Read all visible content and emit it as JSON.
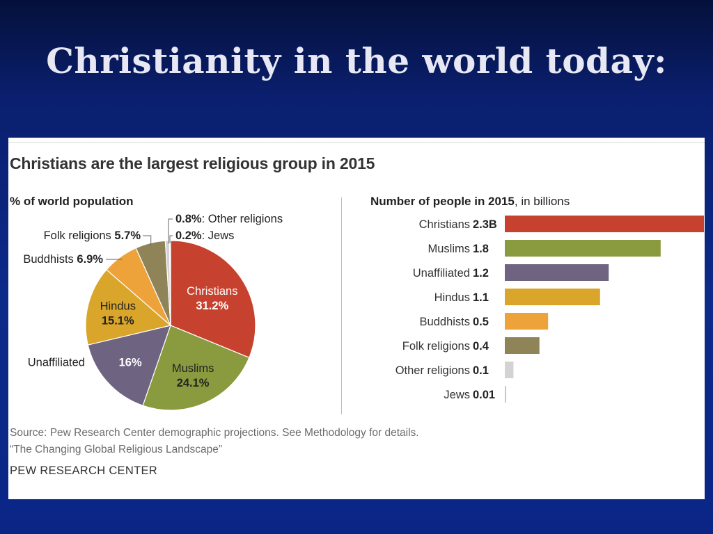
{
  "slide": {
    "title": "Christianity in the world today:"
  },
  "figure": {
    "title": "Christians are the largest religious group in 2015",
    "source_line1": "Source: Pew Research Center demographic projections. See Methodology for details.",
    "source_line2": "“The Changing Global Religious Landscape”",
    "credit": "PEW RESEARCH CENTER"
  },
  "chart_data": [
    {
      "type": "pie",
      "title": "% of world population",
      "slices": [
        {
          "label": "Christians",
          "pct_label": "31.2%",
          "value": 31.2,
          "color": "#c7422e"
        },
        {
          "label": "Muslims",
          "pct_label": "24.1%",
          "value": 24.1,
          "color": "#8a9a3e"
        },
        {
          "label": "Unaffiliated",
          "pct_label": "16%",
          "value": 16.0,
          "color": "#6e6380"
        },
        {
          "label": "Hindus",
          "pct_label": "15.1%",
          "value": 15.1,
          "color": "#d9a52a"
        },
        {
          "label": "Buddhists",
          "pct_label": "6.9%",
          "value": 6.9,
          "color": "#eea23a"
        },
        {
          "label": "Folk religions",
          "pct_label": "5.7%",
          "value": 5.7,
          "color": "#8f8458"
        },
        {
          "label": "Other religions",
          "pct_label": "0.8%",
          "value": 0.8,
          "color": "#d3d3d3"
        },
        {
          "label": "Jews",
          "pct_label": "0.2%",
          "value": 0.2,
          "color": "#a9cfe4"
        }
      ]
    },
    {
      "type": "bar",
      "orientation": "horizontal",
      "title": "Number of people in 2015",
      "unit": ", in billions",
      "categories": [
        "Christians",
        "Muslims",
        "Unaffiliated",
        "Hindus",
        "Buddhists",
        "Folk religions",
        "Other religions",
        "Jews"
      ],
      "values": [
        2.3,
        1.8,
        1.2,
        1.1,
        0.5,
        0.4,
        0.1,
        0.01
      ],
      "value_labels": [
        "2.3B",
        "1.8",
        "1.2",
        "1.1",
        "0.5",
        "0.4",
        "0.1",
        "0.01"
      ],
      "colors": [
        "#c7422e",
        "#8a9a3e",
        "#6e6380",
        "#d9a52a",
        "#eea23a",
        "#8f8458",
        "#d3d3d3",
        "#a9cfe4"
      ]
    }
  ]
}
